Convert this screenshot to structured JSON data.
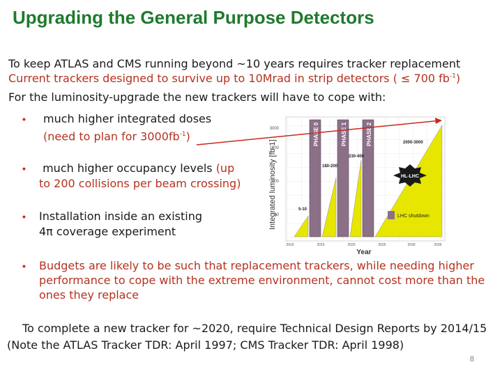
{
  "title": "Upgrading the General Purpose Detectors",
  "intro": {
    "line1": "To keep ATLAS and CMS running beyond ~10 years requires tracker replacement",
    "line2_main": "Current trackers designed to survive up to 10Mrad in strip detectors ( ≤ 700 fb",
    "line2_sup": "-1",
    "line2_end": ")",
    "line3": "For the luminosity-upgrade the new trackers will have to cope with:"
  },
  "bullets": [
    {
      "l1": "much higher integrated doses",
      "l2_main": "(need to plan for  3000fb",
      "l2_sup": "-1",
      "l2_end": ")"
    },
    {
      "l1_a": "much higher occupancy levels ",
      "l1_b": "(up",
      "l2": "to 200 collisions per beam crossing)"
    },
    {
      "l1": "Installation inside an existing",
      "l2": "4π coverage experiment"
    },
    {
      "l1": "Budgets are likely to be such that replacement trackers, while needing higher",
      "l2": "performance to cope with the extreme environment, cannot cost more than the",
      "l3": "ones they replace"
    }
  ],
  "footer": {
    "line1": "To complete a new tracker for ~2020, require Technical Design Reports by 2014/15",
    "line2": "(Note the ATLAS Tracker TDR: April 1997; CMS Tracker TDR: April 1998)"
  },
  "page_number": "8",
  "chart": {
    "ylabel": "Integrated luminosity [fb-1]",
    "xlabel": "Year",
    "phases": [
      "PHASE 0",
      "PHASE 1",
      "PHASE 2"
    ],
    "labels": {
      "a": "2000-3000",
      "b": "230-400",
      "c": "180-200",
      "d": "5-10",
      "hl": "HL-LHC",
      "shutdown": "LHC shutdown"
    },
    "xticks": [
      "2010",
      "2015",
      "2020",
      "2025",
      "2030",
      "2035"
    ],
    "yticks": [
      "3000",
      "1000",
      "100",
      "10"
    ]
  },
  "colors": {
    "title": "#1f7a2e",
    "accent_red": "#b5321f",
    "phase_bar": "#8c7088",
    "ramp": "#e6e600"
  }
}
